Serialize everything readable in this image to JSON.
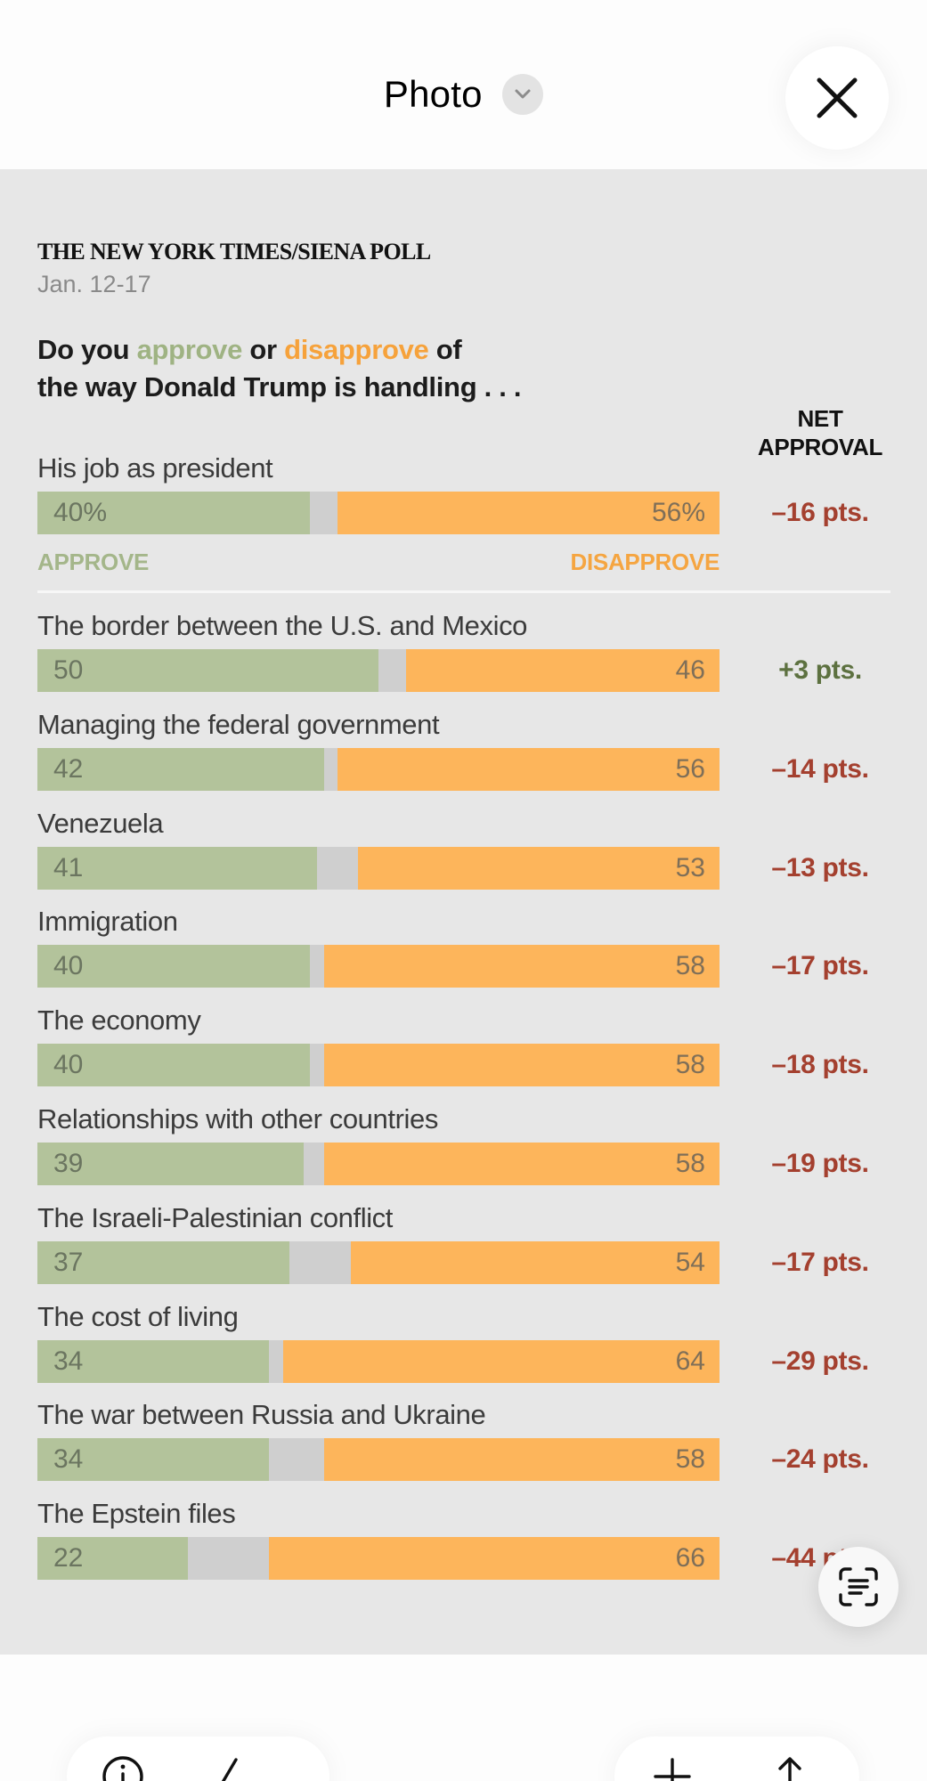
{
  "header": {
    "title": "Photo",
    "chevron_icon": "chevron-down-icon",
    "close_icon": "close-icon"
  },
  "graphic": {
    "source": "THE NEW YORK TIMES/SIENA POLL",
    "date": "Jan. 12-17",
    "question": {
      "part1": "Do you ",
      "approve_word": "approve",
      "part2": " or ",
      "disapprove_word": "disapprove",
      "part3": " of",
      "line2": "the way Donald Trump is handling . . ."
    },
    "net_header_line1": "NET",
    "net_header_line2": "APPROVAL",
    "legend": {
      "approve": "APPROVE",
      "disapprove": "DISAPPROVE"
    },
    "colors": {
      "approve": "#b3c39b",
      "disapprove": "#fdb55b",
      "undecided": "#cfcfcf",
      "net_negative": "#a4402f",
      "net_positive": "#5d7140"
    }
  },
  "chart_data": {
    "type": "bar",
    "subtype": "stacked-horizontal-100",
    "title": "Do you approve or disapprove of the way Donald Trump is handling . . .",
    "source": "THE NEW YORK TIMES/SIENA POLL",
    "date": "Jan. 12-17",
    "xlim": [
      0,
      100
    ],
    "legend": [
      "APPROVE",
      "DISAPPROVE"
    ],
    "categories": [
      "His job as president",
      "The border between the U.S. and Mexico",
      "Managing the federal government",
      "Venezuela",
      "Immigration",
      "The economy",
      "Relationships with other countries",
      "The Israeli-Palestinian conflict",
      "The cost of living",
      "The war between Russia and Ukraine",
      "The Epstein files"
    ],
    "series": [
      {
        "name": "Approve",
        "values": [
          40,
          50,
          42,
          41,
          40,
          40,
          39,
          37,
          34,
          34,
          22
        ]
      },
      {
        "name": "Disapprove",
        "values": [
          56,
          46,
          56,
          53,
          58,
          58,
          58,
          54,
          64,
          58,
          66
        ]
      }
    ],
    "rows": [
      {
        "label": "His job as president",
        "approve": 40,
        "disapprove": 56,
        "approve_label": "40%",
        "disapprove_label": "56%",
        "net": -16,
        "net_label": "–16 pts."
      },
      {
        "label": "The border between the U.S. and Mexico",
        "approve": 50,
        "disapprove": 46,
        "approve_label": "50",
        "disapprove_label": "46",
        "net": 3,
        "net_label": "+3 pts."
      },
      {
        "label": "Managing the federal government",
        "approve": 42,
        "disapprove": 56,
        "approve_label": "42",
        "disapprove_label": "56",
        "net": -14,
        "net_label": "–14 pts."
      },
      {
        "label": "Venezuela",
        "approve": 41,
        "disapprove": 53,
        "approve_label": "41",
        "disapprove_label": "53",
        "net": -13,
        "net_label": "–13 pts."
      },
      {
        "label": "Immigration",
        "approve": 40,
        "disapprove": 58,
        "approve_label": "40",
        "disapprove_label": "58",
        "net": -17,
        "net_label": "–17 pts."
      },
      {
        "label": "The economy",
        "approve": 40,
        "disapprove": 58,
        "approve_label": "40",
        "disapprove_label": "58",
        "net": -18,
        "net_label": "–18 pts."
      },
      {
        "label": "Relationships with other countries",
        "approve": 39,
        "disapprove": 58,
        "approve_label": "39",
        "disapprove_label": "58",
        "net": -19,
        "net_label": "–19 pts."
      },
      {
        "label": "The Israeli-Palestinian conflict",
        "approve": 37,
        "disapprove": 54,
        "approve_label": "37",
        "disapprove_label": "54",
        "net": -17,
        "net_label": "–17 pts."
      },
      {
        "label": "The cost of living",
        "approve": 34,
        "disapprove": 64,
        "approve_label": "34",
        "disapprove_label": "64",
        "net": -29,
        "net_label": "–29 pts."
      },
      {
        "label": "The war between Russia and Ukraine",
        "approve": 34,
        "disapprove": 58,
        "approve_label": "34",
        "disapprove_label": "58",
        "net": -24,
        "net_label": "–24 pts."
      },
      {
        "label": "The Epstein files",
        "approve": 22,
        "disapprove": 66,
        "approve_label": "22",
        "disapprove_label": "66",
        "net": -44,
        "net_label": "–44 pts."
      }
    ]
  },
  "overlay": {
    "live_text_icon": "text-scan-icon"
  },
  "bottom_toolbar": {
    "left_icons": [
      "info-icon",
      "send-icon"
    ],
    "right_icons": [
      "add-icon",
      "share-icon"
    ]
  }
}
